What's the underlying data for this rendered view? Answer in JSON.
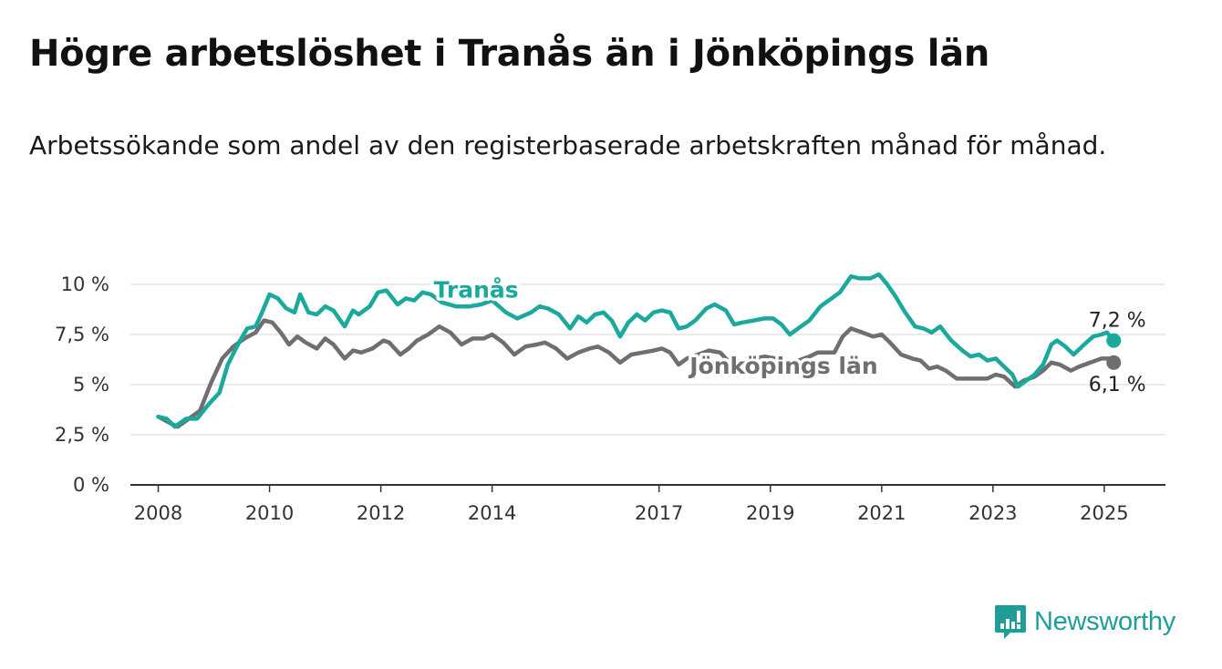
{
  "title": "Högre arbetslöshet i Tranås än i Jönköpings län",
  "subtitle": "Arbetssökande som andel av den registerbaserade arbetskraften månad för månad.",
  "brand": "Newsworthy",
  "colors": {
    "accent": "#1aa99c",
    "secondary": "#6e6e73",
    "brand": "#1f9d97",
    "grid": "#dddddd"
  },
  "chart_data": {
    "type": "line",
    "title": "Högre arbetslöshet i Tranås än i Jönköpings län",
    "ylim": [
      0,
      10
    ],
    "xlim": [
      2007.5,
      2026.1
    ],
    "y_ticks": [
      {
        "value": 0,
        "label": "0 %"
      },
      {
        "value": 2.5,
        "label": "2,5 %"
      },
      {
        "value": 5,
        "label": "5 %"
      },
      {
        "value": 7.5,
        "label": "7,5 %"
      },
      {
        "value": 10,
        "label": "10 %"
      }
    ],
    "x_ticks": [
      {
        "value": 2008,
        "label": "2008"
      },
      {
        "value": 2010,
        "label": "2010"
      },
      {
        "value": 2012,
        "label": "2012"
      },
      {
        "value": 2014,
        "label": "2014"
      },
      {
        "value": 2017,
        "label": "2017"
      },
      {
        "value": 2019,
        "label": "2019"
      },
      {
        "value": 2021,
        "label": "2021"
      },
      {
        "value": 2023,
        "label": "2023"
      },
      {
        "value": 2025,
        "label": "2025"
      }
    ],
    "grid": true,
    "series": [
      {
        "name": "Tranås",
        "color": "#1aa99c",
        "end_label": "7,2 %",
        "points": [
          [
            2008.0,
            3.4
          ],
          [
            2008.15,
            3.3
          ],
          [
            2008.3,
            2.9
          ],
          [
            2008.5,
            3.3
          ],
          [
            2008.7,
            3.3
          ],
          [
            2008.9,
            4.0
          ],
          [
            2009.1,
            4.6
          ],
          [
            2009.25,
            6.0
          ],
          [
            2009.45,
            7.1
          ],
          [
            2009.6,
            7.8
          ],
          [
            2009.75,
            7.9
          ],
          [
            2009.85,
            8.5
          ],
          [
            2010.0,
            9.5
          ],
          [
            2010.15,
            9.3
          ],
          [
            2010.3,
            8.8
          ],
          [
            2010.45,
            8.6
          ],
          [
            2010.55,
            9.5
          ],
          [
            2010.7,
            8.6
          ],
          [
            2010.85,
            8.5
          ],
          [
            2011.0,
            8.9
          ],
          [
            2011.15,
            8.7
          ],
          [
            2011.35,
            7.9
          ],
          [
            2011.5,
            8.7
          ],
          [
            2011.6,
            8.5
          ],
          [
            2011.8,
            8.9
          ],
          [
            2011.95,
            9.6
          ],
          [
            2012.1,
            9.7
          ],
          [
            2012.3,
            9.0
          ],
          [
            2012.45,
            9.3
          ],
          [
            2012.6,
            9.2
          ],
          [
            2012.75,
            9.6
          ],
          [
            2012.9,
            9.5
          ],
          [
            2013.1,
            9.1
          ],
          [
            2013.35,
            8.9
          ],
          [
            2013.6,
            8.9
          ],
          [
            2013.8,
            9.0
          ],
          [
            2014.0,
            9.2
          ],
          [
            2014.25,
            8.6
          ],
          [
            2014.45,
            8.3
          ],
          [
            2014.7,
            8.6
          ],
          [
            2014.85,
            8.9
          ],
          [
            2015.0,
            8.8
          ],
          [
            2015.2,
            8.5
          ],
          [
            2015.4,
            7.8
          ],
          [
            2015.55,
            8.4
          ],
          [
            2015.7,
            8.1
          ],
          [
            2015.85,
            8.5
          ],
          [
            2016.0,
            8.6
          ],
          [
            2016.15,
            8.2
          ],
          [
            2016.3,
            7.4
          ],
          [
            2016.45,
            8.1
          ],
          [
            2016.6,
            8.5
          ],
          [
            2016.75,
            8.2
          ],
          [
            2016.9,
            8.6
          ],
          [
            2017.05,
            8.7
          ],
          [
            2017.2,
            8.6
          ],
          [
            2017.35,
            7.8
          ],
          [
            2017.5,
            7.9
          ],
          [
            2017.65,
            8.2
          ],
          [
            2017.85,
            8.8
          ],
          [
            2018.0,
            9.0
          ],
          [
            2018.2,
            8.7
          ],
          [
            2018.35,
            8.0
          ],
          [
            2018.5,
            8.1
          ],
          [
            2018.7,
            8.2
          ],
          [
            2018.9,
            8.3
          ],
          [
            2019.05,
            8.3
          ],
          [
            2019.2,
            8.0
          ],
          [
            2019.35,
            7.5
          ],
          [
            2019.55,
            7.9
          ],
          [
            2019.7,
            8.2
          ],
          [
            2019.9,
            8.9
          ],
          [
            2020.05,
            9.2
          ],
          [
            2020.25,
            9.6
          ],
          [
            2020.45,
            10.4
          ],
          [
            2020.6,
            10.3
          ],
          [
            2020.8,
            10.3
          ],
          [
            2020.95,
            10.5
          ],
          [
            2021.1,
            10.0
          ],
          [
            2021.25,
            9.4
          ],
          [
            2021.4,
            8.7
          ],
          [
            2021.6,
            7.9
          ],
          [
            2021.75,
            7.8
          ],
          [
            2021.9,
            7.6
          ],
          [
            2022.05,
            7.9
          ],
          [
            2022.25,
            7.2
          ],
          [
            2022.45,
            6.7
          ],
          [
            2022.6,
            6.4
          ],
          [
            2022.75,
            6.5
          ],
          [
            2022.9,
            6.2
          ],
          [
            2023.05,
            6.3
          ],
          [
            2023.2,
            5.9
          ],
          [
            2023.35,
            5.5
          ],
          [
            2023.45,
            4.9
          ],
          [
            2023.6,
            5.2
          ],
          [
            2023.75,
            5.5
          ],
          [
            2023.9,
            6.0
          ],
          [
            2024.05,
            7.0
          ],
          [
            2024.15,
            7.2
          ],
          [
            2024.3,
            6.9
          ],
          [
            2024.45,
            6.5
          ],
          [
            2024.6,
            6.9
          ],
          [
            2024.8,
            7.4
          ],
          [
            2024.95,
            7.5
          ],
          [
            2025.05,
            7.6
          ],
          [
            2025.17,
            7.2
          ]
        ]
      },
      {
        "name": "Jönköpings län",
        "color": "#6e6e73",
        "end_label": "6,1 %",
        "points": [
          [
            2008.0,
            3.4
          ],
          [
            2008.2,
            3.1
          ],
          [
            2008.35,
            2.9
          ],
          [
            2008.55,
            3.3
          ],
          [
            2008.75,
            3.7
          ],
          [
            2008.95,
            5.1
          ],
          [
            2009.15,
            6.3
          ],
          [
            2009.35,
            6.9
          ],
          [
            2009.55,
            7.3
          ],
          [
            2009.75,
            7.6
          ],
          [
            2009.9,
            8.2
          ],
          [
            2010.05,
            8.1
          ],
          [
            2010.2,
            7.6
          ],
          [
            2010.35,
            7.0
          ],
          [
            2010.5,
            7.4
          ],
          [
            2010.65,
            7.1
          ],
          [
            2010.85,
            6.8
          ],
          [
            2011.0,
            7.3
          ],
          [
            2011.15,
            7.0
          ],
          [
            2011.35,
            6.3
          ],
          [
            2011.5,
            6.7
          ],
          [
            2011.65,
            6.6
          ],
          [
            2011.85,
            6.8
          ],
          [
            2012.05,
            7.2
          ],
          [
            2012.15,
            7.1
          ],
          [
            2012.35,
            6.5
          ],
          [
            2012.5,
            6.8
          ],
          [
            2012.65,
            7.2
          ],
          [
            2012.85,
            7.5
          ],
          [
            2013.05,
            7.9
          ],
          [
            2013.25,
            7.6
          ],
          [
            2013.45,
            7.0
          ],
          [
            2013.65,
            7.3
          ],
          [
            2013.85,
            7.3
          ],
          [
            2014.0,
            7.5
          ],
          [
            2014.2,
            7.1
          ],
          [
            2014.4,
            6.5
          ],
          [
            2014.6,
            6.9
          ],
          [
            2014.8,
            7.0
          ],
          [
            2014.95,
            7.1
          ],
          [
            2015.15,
            6.8
          ],
          [
            2015.35,
            6.3
          ],
          [
            2015.55,
            6.6
          ],
          [
            2015.75,
            6.8
          ],
          [
            2015.9,
            6.9
          ],
          [
            2016.1,
            6.6
          ],
          [
            2016.3,
            6.1
          ],
          [
            2016.5,
            6.5
          ],
          [
            2016.7,
            6.6
          ],
          [
            2016.9,
            6.7
          ],
          [
            2017.05,
            6.8
          ],
          [
            2017.2,
            6.6
          ],
          [
            2017.35,
            6.0
          ],
          [
            2017.5,
            6.3
          ],
          [
            2017.7,
            6.5
          ],
          [
            2017.9,
            6.7
          ],
          [
            2018.1,
            6.6
          ],
          [
            2018.3,
            6.0
          ],
          [
            2018.5,
            6.2
          ],
          [
            2018.7,
            6.3
          ],
          [
            2018.9,
            6.4
          ],
          [
            2019.1,
            6.3
          ],
          [
            2019.3,
            5.9
          ],
          [
            2019.5,
            6.2
          ],
          [
            2019.7,
            6.4
          ],
          [
            2019.85,
            6.6
          ],
          [
            2020.0,
            6.6
          ],
          [
            2020.15,
            6.6
          ],
          [
            2020.3,
            7.4
          ],
          [
            2020.45,
            7.8
          ],
          [
            2020.65,
            7.6
          ],
          [
            2020.85,
            7.4
          ],
          [
            2021.0,
            7.5
          ],
          [
            2021.15,
            7.1
          ],
          [
            2021.35,
            6.5
          ],
          [
            2021.55,
            6.3
          ],
          [
            2021.7,
            6.2
          ],
          [
            2021.85,
            5.8
          ],
          [
            2022.0,
            5.9
          ],
          [
            2022.15,
            5.7
          ],
          [
            2022.35,
            5.3
          ],
          [
            2022.55,
            5.3
          ],
          [
            2022.75,
            5.3
          ],
          [
            2022.9,
            5.3
          ],
          [
            2023.05,
            5.5
          ],
          [
            2023.2,
            5.4
          ],
          [
            2023.4,
            4.9
          ],
          [
            2023.55,
            5.2
          ],
          [
            2023.75,
            5.4
          ],
          [
            2023.9,
            5.7
          ],
          [
            2024.05,
            6.1
          ],
          [
            2024.2,
            6.0
          ],
          [
            2024.4,
            5.7
          ],
          [
            2024.55,
            5.9
          ],
          [
            2024.75,
            6.1
          ],
          [
            2024.95,
            6.3
          ],
          [
            2025.1,
            6.3
          ],
          [
            2025.17,
            6.1
          ]
        ]
      }
    ]
  }
}
